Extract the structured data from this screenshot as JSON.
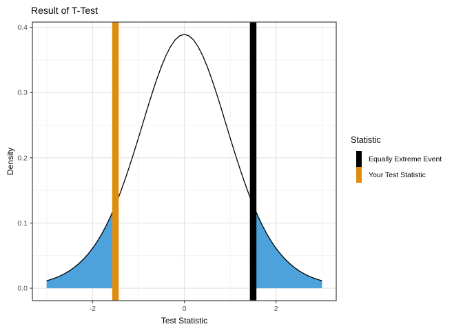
{
  "chart_data": {
    "type": "line",
    "title": "Result of T-Test",
    "xlabel": "Test Statistic",
    "ylabel": "Density",
    "xlim": [
      -3.31,
      3.31
    ],
    "ylim": [
      -0.019,
      0.408
    ],
    "x_ticks": [
      -2,
      0,
      2
    ],
    "x_tick_labels": [
      "-2",
      "0",
      "2"
    ],
    "y_ticks": [
      0.0,
      0.1,
      0.2,
      0.3,
      0.4
    ],
    "y_tick_labels": [
      "0.0",
      "0.1",
      "0.2",
      "0.3",
      "0.4"
    ],
    "x_minor_ticks": [
      -3,
      -1,
      1,
      3
    ],
    "y_minor_ticks": [
      0.05,
      0.15,
      0.25,
      0.35
    ],
    "grid": true,
    "legend_position": "right",
    "curve": {
      "name": "density-curve",
      "x": [
        -3,
        -2.9,
        -2.8,
        -2.7,
        -2.6,
        -2.5,
        -2.4,
        -2.3,
        -2.2,
        -2.1,
        -2,
        -1.9,
        -1.8,
        -1.7,
        -1.6,
        -1.5,
        -1.4,
        -1.3,
        -1.2,
        -1.1,
        -1,
        -0.9,
        -0.8,
        -0.7,
        -0.6,
        -0.5,
        -0.4,
        -0.3,
        -0.2,
        -0.1,
        0,
        0.1,
        0.2,
        0.3,
        0.4,
        0.5,
        0.6,
        0.7,
        0.8,
        0.9,
        1,
        1.1,
        1.2,
        1.3,
        1.4,
        1.5,
        1.6,
        1.7,
        1.8,
        1.9,
        2,
        2.1,
        2.2,
        2.3,
        2.4,
        2.5,
        2.6,
        2.7,
        2.8,
        2.9,
        3
      ],
      "y": [
        0.0114,
        0.0136,
        0.0161,
        0.0191,
        0.0227,
        0.0268,
        0.0319,
        0.0377,
        0.0444,
        0.0522,
        0.0611,
        0.0714,
        0.0831,
        0.0963,
        0.1111,
        0.1275,
        0.1455,
        0.1649,
        0.1857,
        0.2076,
        0.2303,
        0.2534,
        0.2767,
        0.2991,
        0.3203,
        0.3397,
        0.3566,
        0.3704,
        0.3807,
        0.387,
        0.3891,
        0.387,
        0.3807,
        0.3704,
        0.3566,
        0.3397,
        0.3203,
        0.2991,
        0.2767,
        0.2534,
        0.2303,
        0.2076,
        0.1857,
        0.1649,
        0.1455,
        0.1275,
        0.1111,
        0.0963,
        0.0831,
        0.0714,
        0.0611,
        0.0522,
        0.0444,
        0.0377,
        0.0319,
        0.0268,
        0.0227,
        0.0191,
        0.0161,
        0.0136,
        0.0114
      ]
    },
    "shaded_regions": [
      {
        "name": "lower-tail",
        "x_from": -3,
        "x_to": -1.5,
        "fill": "#4DA2DC"
      },
      {
        "name": "upper-tail",
        "x_from": 1.5,
        "x_to": 3,
        "fill": "#4DA2DC"
      }
    ],
    "vlines": [
      {
        "x": 1.5,
        "color": "#000000",
        "name": "equally-extreme-event"
      },
      {
        "x": -1.5,
        "color": "#DE8D10",
        "name": "your-test-statistic"
      }
    ],
    "legend": {
      "title": "Statistic",
      "items": [
        {
          "label": "Equally Extreme Event",
          "color": "#000000"
        },
        {
          "label": "Your Test Statistic",
          "color": "#DE8D10"
        }
      ]
    },
    "colors": {
      "tail_fill": "#4DA2DC",
      "test_statistic_line": "#DE8D10",
      "extreme_event_line": "#000000",
      "curve_stroke": "#000000",
      "panel_border": "#4d4d4d",
      "grid_major": "#E4E4E4",
      "grid_minor": "#F2F2F2",
      "tick_mark": "#333333",
      "tick_label": "#4d4d4d"
    }
  }
}
